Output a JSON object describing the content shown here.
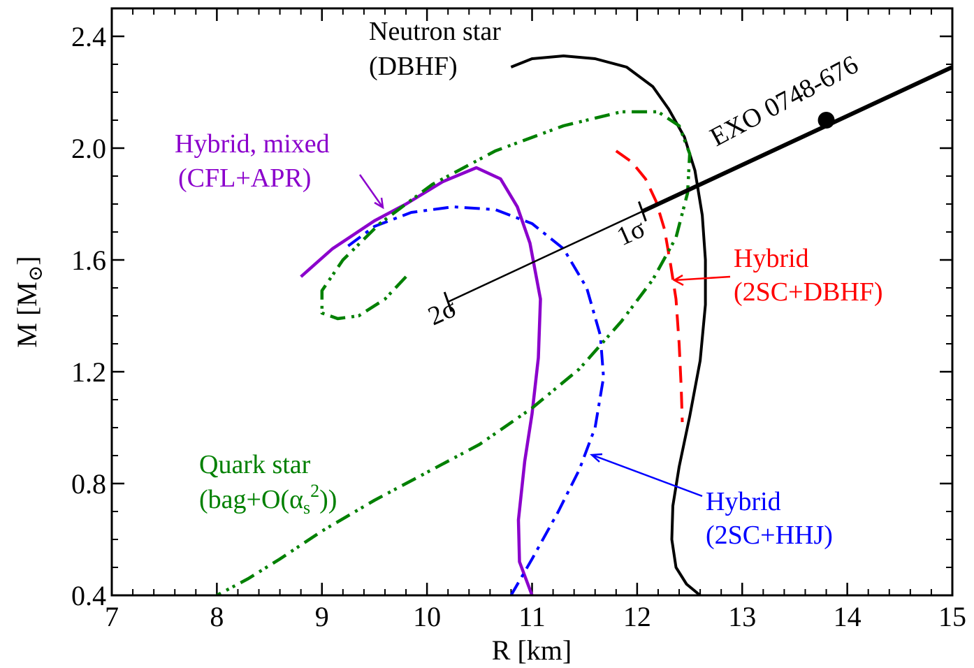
{
  "chart_data": {
    "type": "line",
    "title": "",
    "xlabel": "R [km]",
    "ylabel_main": "M [M",
    "ylabel_sub": "⊙",
    "ylabel_close": "]",
    "xlim": [
      7,
      15
    ],
    "ylim": [
      0.4,
      2.5
    ],
    "xticks": [
      7,
      8,
      9,
      10,
      11,
      12,
      13,
      14,
      15
    ],
    "xtick_labels": [
      "7",
      "8",
      "9",
      "10",
      "11",
      "12",
      "13",
      "14",
      "15"
    ],
    "yticks": [
      0.4,
      0.8,
      1.2,
      1.6,
      2.0,
      2.4
    ],
    "ytick_labels": [
      "0.4",
      "0.8",
      "1.2",
      "1.6",
      "2.0",
      "2.4"
    ],
    "grid": false,
    "series": [
      {
        "key": "neutron",
        "color": "#000000",
        "dash": "",
        "width": 4,
        "points": [
          [
            10.8,
            2.29
          ],
          [
            11.0,
            2.32
          ],
          [
            11.3,
            2.33
          ],
          [
            11.6,
            2.32
          ],
          [
            11.9,
            2.29
          ],
          [
            12.15,
            2.22
          ],
          [
            12.3,
            2.14
          ],
          [
            12.45,
            2.04
          ],
          [
            12.55,
            1.92
          ],
          [
            12.62,
            1.76
          ],
          [
            12.65,
            1.6
          ],
          [
            12.65,
            1.44
          ],
          [
            12.6,
            1.24
          ],
          [
            12.5,
            1.04
          ],
          [
            12.4,
            0.86
          ],
          [
            12.34,
            0.72
          ],
          [
            12.33,
            0.6
          ],
          [
            12.37,
            0.5
          ],
          [
            12.47,
            0.44
          ],
          [
            12.6,
            0.4
          ]
        ]
      },
      {
        "key": "mixed",
        "color": "#8b00cc",
        "dash": "",
        "width": 4.5,
        "points": [
          [
            8.8,
            1.54
          ],
          [
            8.95,
            1.59
          ],
          [
            9.1,
            1.64
          ],
          [
            9.3,
            1.69
          ],
          [
            9.5,
            1.74
          ],
          [
            9.8,
            1.8
          ],
          [
            10.15,
            1.88
          ],
          [
            10.47,
            1.93
          ],
          [
            10.7,
            1.89
          ],
          [
            10.86,
            1.79
          ],
          [
            10.98,
            1.66
          ],
          [
            11.08,
            1.46
          ],
          [
            11.06,
            1.25
          ],
          [
            11.0,
            1.05
          ],
          [
            10.93,
            0.88
          ],
          [
            10.87,
            0.67
          ],
          [
            10.88,
            0.52
          ],
          [
            11.0,
            0.4
          ]
        ]
      },
      {
        "key": "hhj",
        "color": "#0000ff",
        "dash": "22,9,5,9",
        "width": 4,
        "points": [
          [
            9.25,
            1.65
          ],
          [
            9.5,
            1.72
          ],
          [
            9.85,
            1.77
          ],
          [
            10.25,
            1.79
          ],
          [
            10.65,
            1.78
          ],
          [
            11.0,
            1.73
          ],
          [
            11.3,
            1.64
          ],
          [
            11.52,
            1.5
          ],
          [
            11.65,
            1.33
          ],
          [
            11.68,
            1.18
          ],
          [
            11.6,
            1.0
          ],
          [
            11.45,
            0.85
          ],
          [
            11.25,
            0.7
          ],
          [
            11.0,
            0.53
          ],
          [
            10.8,
            0.4
          ]
        ]
      },
      {
        "key": "dbhf2sc",
        "color": "#ff0000",
        "dash": "24,13",
        "width": 4,
        "points": [
          [
            11.8,
            1.99
          ],
          [
            11.95,
            1.95
          ],
          [
            12.08,
            1.89
          ],
          [
            12.18,
            1.81
          ],
          [
            12.26,
            1.71
          ],
          [
            12.32,
            1.58
          ],
          [
            12.37,
            1.46
          ],
          [
            12.4,
            1.3
          ],
          [
            12.42,
            1.14
          ],
          [
            12.43,
            1.02
          ]
        ]
      },
      {
        "key": "quark",
        "color": "#008000",
        "dash": "22,9,4,6,4,9",
        "width": 4.5,
        "points": [
          [
            9.8,
            1.54
          ],
          [
            9.6,
            1.46
          ],
          [
            9.35,
            1.4
          ],
          [
            9.15,
            1.39
          ],
          [
            9.0,
            1.41
          ],
          [
            9.0,
            1.49
          ],
          [
            9.2,
            1.6
          ],
          [
            9.55,
            1.73
          ],
          [
            10.05,
            1.87
          ],
          [
            10.65,
            1.99
          ],
          [
            11.3,
            2.08
          ],
          [
            11.85,
            2.13
          ],
          [
            12.2,
            2.13
          ],
          [
            12.4,
            2.08
          ],
          [
            12.5,
            1.98
          ],
          [
            12.48,
            1.84
          ],
          [
            12.37,
            1.68
          ],
          [
            12.15,
            1.53
          ],
          [
            11.85,
            1.38
          ],
          [
            11.45,
            1.21
          ],
          [
            11.0,
            1.07
          ],
          [
            10.5,
            0.94
          ],
          [
            10.0,
            0.84
          ],
          [
            9.5,
            0.74
          ],
          [
            9.0,
            0.63
          ],
          [
            8.6,
            0.53
          ],
          [
            8.3,
            0.46
          ],
          [
            8.0,
            0.4
          ]
        ]
      }
    ],
    "exo_constraint": {
      "label": "EXO 0748-676",
      "point": [
        13.8,
        2.1
      ],
      "line_start": [
        10.2,
        1.45
      ],
      "line_end": [
        15.0,
        2.29
      ],
      "onesigma_r": 12.05,
      "twosigma_r": 10.2,
      "onesigma_label": "1σ",
      "twosigma_label": "2σ"
    },
    "annotations": {
      "neutron_line1": "Neutron star",
      "neutron_line2": "(DBHF)",
      "mixed_line1": "Hybrid, mixed",
      "mixed_line2": "(CFL+APR)",
      "hybrid_dbhf_line1": "Hybrid",
      "hybrid_dbhf_line2": "(2SC+DBHF)",
      "hybrid_hhj_line1": "Hybrid",
      "hybrid_hhj_line2": "(2SC+HHJ)",
      "quark_line1": "Quark star",
      "quark_line2_a": "(bag+O(",
      "quark_alpha": "α",
      "quark_sub": "s",
      "quark_sup": "2",
      "quark_line2_b": "))"
    },
    "colors": {
      "neutron": "#000000",
      "mixed": "#8b00cc",
      "hhj": "#0000ff",
      "dbhf2sc": "#ff0000",
      "quark": "#008000"
    }
  }
}
